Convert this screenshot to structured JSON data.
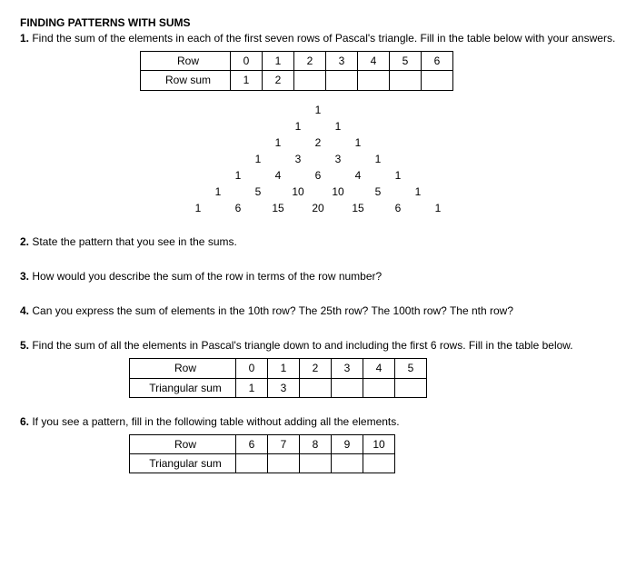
{
  "heading": "FINDING PATTERNS WITH SUMS",
  "q1": {
    "num": "1.",
    "text": " Find the sum of the elements in each of the first seven rows of Pascal's triangle. Fill in the table below with your answers.",
    "table": {
      "row_label": "Row",
      "sum_label": "Row sum",
      "cols": [
        "0",
        "1",
        "2",
        "3",
        "4",
        "5",
        "6"
      ],
      "sums": [
        "1",
        "2",
        "",
        "",
        "",
        "",
        ""
      ]
    }
  },
  "pascal": [
    [
      "1"
    ],
    [
      "1",
      "1"
    ],
    [
      "1",
      "2",
      "1"
    ],
    [
      "1",
      "3",
      "3",
      "1"
    ],
    [
      "1",
      "4",
      "6",
      "4",
      "1"
    ],
    [
      "1",
      "5",
      "10",
      "10",
      "5",
      "1"
    ],
    [
      "1",
      "6",
      "15",
      "20",
      "15",
      "6",
      "1"
    ]
  ],
  "q2": {
    "num": "2.",
    "text": " State the pattern that you see in the sums."
  },
  "q3": {
    "num": "3.",
    "text": " How would you describe the sum of the row in terms of the row number?"
  },
  "q4": {
    "num": "4.",
    "text": " Can you express the sum of elements in the 10th row? The 25th row? The 100th row? The nth row?"
  },
  "q5": {
    "num": "5.",
    "text": " Find the sum of all the elements in Pascal's triangle down to and including the first 6 rows. Fill in the table below.",
    "table": {
      "row_label": "Row",
      "sum_label": "Triangular sum",
      "cols": [
        "0",
        "1",
        "2",
        "3",
        "4",
        "5"
      ],
      "sums": [
        "1",
        "3",
        "",
        "",
        "",
        ""
      ]
    }
  },
  "q6": {
    "num": "6.",
    "text": " If you see a pattern, fill in the following table without adding all the elements.",
    "table": {
      "row_label": "Row",
      "sum_label": "Triangular sum",
      "cols": [
        "6",
        "7",
        "8",
        "9",
        "10"
      ],
      "sums": [
        "",
        "",
        "",
        "",
        ""
      ]
    }
  }
}
